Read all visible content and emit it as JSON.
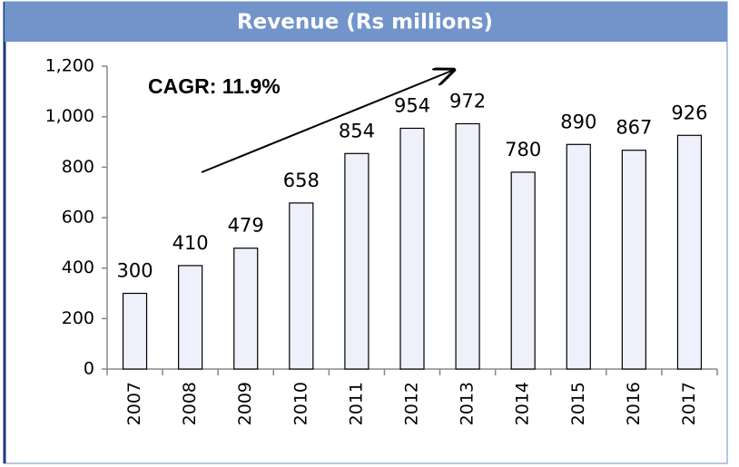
{
  "chart_data": {
    "type": "bar",
    "title": "Revenue (Rs millions)",
    "categories": [
      "2007",
      "2008",
      "2009",
      "2010",
      "2011",
      "2012",
      "2013",
      "2014",
      "2015",
      "2016",
      "2017"
    ],
    "values": [
      300,
      410,
      479,
      658,
      854,
      954,
      972,
      780,
      890,
      867,
      926
    ],
    "color": "#eef0fb",
    "ylim": [
      0,
      1200
    ],
    "yticks": [
      0,
      200,
      400,
      600,
      800,
      {
        "value": 1000,
        "label": "1,000"
      },
      {
        "value": 1200,
        "label": "1,200"
      }
    ],
    "annotation": "CAGR: 11.9%"
  }
}
